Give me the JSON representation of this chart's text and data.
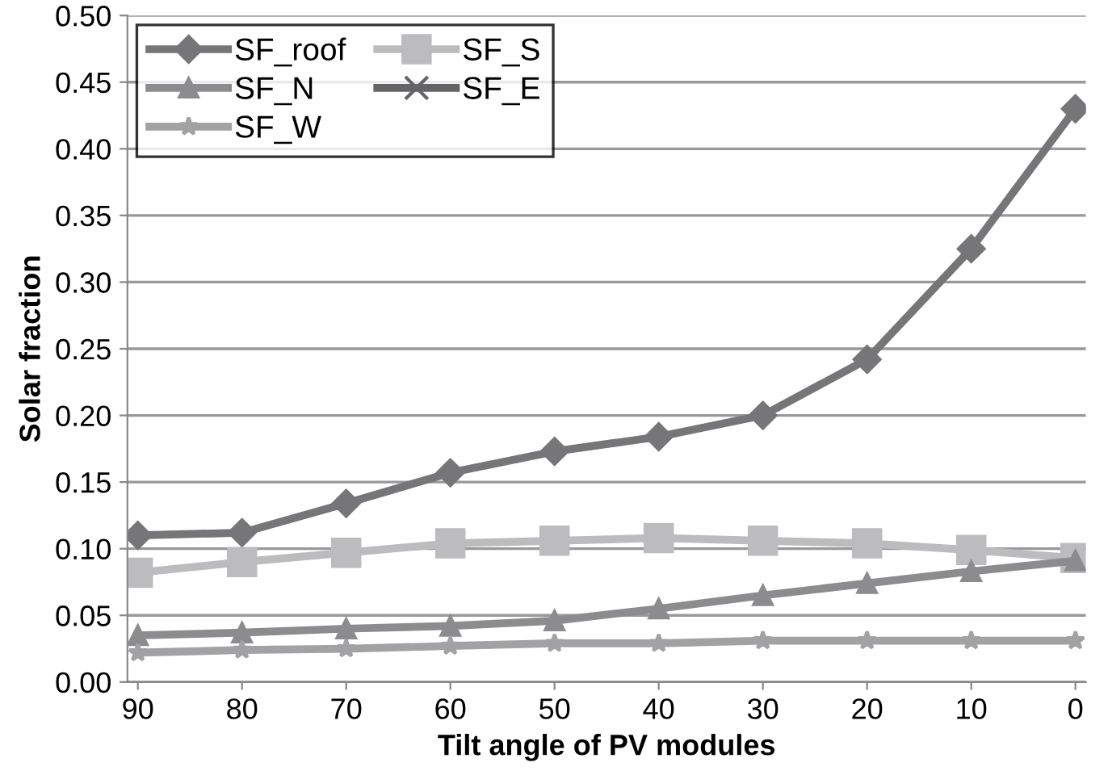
{
  "chart_data": {
    "type": "line",
    "xlabel": "Tilt angle of PV modules",
    "ylabel": "Solar fraction",
    "categories": [
      "90",
      "80",
      "70",
      "60",
      "50",
      "40",
      "30",
      "20",
      "10",
      "0"
    ],
    "series": [
      {
        "name": "SF_roof",
        "color": "#767678",
        "marker": "diamond",
        "values": [
          0.11,
          0.112,
          0.134,
          0.157,
          0.173,
          0.184,
          0.2,
          0.242,
          0.325,
          0.43
        ]
      },
      {
        "name": "SF_S",
        "color": "#bcbcbf",
        "marker": "square",
        "values": [
          0.082,
          0.09,
          0.097,
          0.104,
          0.106,
          0.108,
          0.106,
          0.104,
          0.099,
          0.093
        ]
      },
      {
        "name": "SF_N",
        "color": "#8c8c8e",
        "marker": "triangle",
        "values": [
          0.035,
          0.037,
          0.04,
          0.042,
          0.046,
          0.055,
          0.065,
          0.074,
          0.083,
          0.091
        ]
      },
      {
        "name": "SF_E",
        "color": "#646466",
        "marker": "cross",
        "values": [
          null,
          null,
          null,
          null,
          null,
          null,
          null,
          null,
          null,
          null
        ]
      },
      {
        "name": "SF_W",
        "color": "#a2a2a4",
        "marker": "star",
        "values": [
          0.022,
          0.024,
          0.025,
          0.027,
          0.029,
          0.029,
          0.031,
          0.031,
          0.031,
          0.031
        ]
      }
    ],
    "ylim": [
      0,
      0.5
    ],
    "yticks": [
      {
        "value": 0,
        "label": "0.00"
      },
      {
        "value": 0.05,
        "label": "0.05"
      },
      {
        "value": 0.1,
        "label": "0.10"
      },
      {
        "value": 0.15,
        "label": "0.15"
      },
      {
        "value": 0.2,
        "label": "0.20"
      },
      {
        "value": 0.25,
        "label": "0.25"
      },
      {
        "value": 0.3,
        "label": "0.30"
      },
      {
        "value": 0.35,
        "label": "0.35"
      },
      {
        "value": 0.4,
        "label": "0.40"
      },
      {
        "value": 0.45,
        "label": "0.45"
      },
      {
        "value": 0.5,
        "label": "0.50"
      }
    ],
    "grid": "y",
    "legend": "top left",
    "line_style": "solid"
  }
}
